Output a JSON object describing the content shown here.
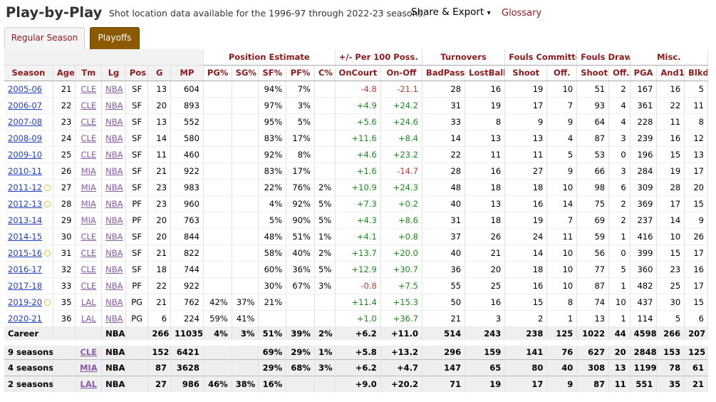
{
  "header": {
    "title": "Play-by-Play",
    "note": "Shot location data available for the 1996-97 through 2022-23 seasons.",
    "share": "Share & Export",
    "caret": "▾",
    "glossary": "Glossary"
  },
  "tabs": {
    "regular": "Regular Season",
    "playoffs": "Playoffs"
  },
  "groups": {
    "pos": "Position Estimate",
    "pm": "+/- Per 100 Poss.",
    "to": "Turnovers",
    "fc": "Fouls Committed",
    "fd": "Fouls Drawn",
    "misc": "Misc."
  },
  "columns": [
    "Season",
    "Age",
    "Tm",
    "Lg",
    "Pos",
    "G",
    "MP",
    "PG%",
    "SG%",
    "SF%",
    "PF%",
    "C%",
    "OnCourt",
    "On-Off",
    "BadPass",
    "LostBall",
    "Shoot",
    "Off.",
    "Shoot",
    "Off.",
    "PGA",
    "And1",
    "Blkd"
  ],
  "rows": [
    {
      "season": "2005-06",
      "award": false,
      "age": "21",
      "tm": "CLE",
      "lg": "NBA",
      "pos": "SF",
      "g": "13",
      "mp": "604",
      "pg": "",
      "sg": "",
      "sf": "94%",
      "pf": "7%",
      "c": "",
      "on": "-4.8",
      "onoff": "-21.1",
      "bp": "28",
      "lb": "16",
      "fcs": "19",
      "fco": "10",
      "fds": "51",
      "fdo": "2",
      "pga": "167",
      "and1": "16",
      "blkd": "5"
    },
    {
      "season": "2006-07",
      "award": false,
      "age": "22",
      "tm": "CLE",
      "lg": "NBA",
      "pos": "SF",
      "g": "20",
      "mp": "893",
      "pg": "",
      "sg": "",
      "sf": "97%",
      "pf": "3%",
      "c": "",
      "on": "+4.9",
      "onoff": "+24.2",
      "bp": "31",
      "lb": "19",
      "fcs": "17",
      "fco": "7",
      "fds": "93",
      "fdo": "4",
      "pga": "361",
      "and1": "22",
      "blkd": "11"
    },
    {
      "season": "2007-08",
      "award": false,
      "age": "23",
      "tm": "CLE",
      "lg": "NBA",
      "pos": "SF",
      "g": "13",
      "mp": "552",
      "pg": "",
      "sg": "",
      "sf": "95%",
      "pf": "5%",
      "c": "",
      "on": "+5.6",
      "onoff": "+24.6",
      "bp": "33",
      "lb": "8",
      "fcs": "9",
      "fco": "9",
      "fds": "64",
      "fdo": "4",
      "pga": "228",
      "and1": "11",
      "blkd": "8"
    },
    {
      "season": "2008-09",
      "award": false,
      "age": "24",
      "tm": "CLE",
      "lg": "NBA",
      "pos": "SF",
      "g": "14",
      "mp": "580",
      "pg": "",
      "sg": "",
      "sf": "83%",
      "pf": "17%",
      "c": "",
      "on": "+11.6",
      "onoff": "+8.4",
      "bp": "14",
      "lb": "13",
      "fcs": "13",
      "fco": "4",
      "fds": "87",
      "fdo": "3",
      "pga": "239",
      "and1": "16",
      "blkd": "12"
    },
    {
      "season": "2009-10",
      "award": false,
      "age": "25",
      "tm": "CLE",
      "lg": "NBA",
      "pos": "SF",
      "g": "11",
      "mp": "460",
      "pg": "",
      "sg": "",
      "sf": "92%",
      "pf": "8%",
      "c": "",
      "on": "+4.6",
      "onoff": "+23.2",
      "bp": "22",
      "lb": "11",
      "fcs": "11",
      "fco": "5",
      "fds": "53",
      "fdo": "0",
      "pga": "196",
      "and1": "15",
      "blkd": "13"
    },
    {
      "season": "2010-11",
      "award": false,
      "age": "26",
      "tm": "MIA",
      "lg": "NBA",
      "pos": "SF",
      "g": "21",
      "mp": "922",
      "pg": "",
      "sg": "",
      "sf": "83%",
      "pf": "17%",
      "c": "",
      "on": "+1.6",
      "onoff": "-14.7",
      "bp": "28",
      "lb": "16",
      "fcs": "27",
      "fco": "9",
      "fds": "66",
      "fdo": "3",
      "pga": "284",
      "and1": "19",
      "blkd": "17"
    },
    {
      "season": "2011-12",
      "award": true,
      "age": "27",
      "tm": "MIA",
      "lg": "NBA",
      "pos": "SF",
      "g": "23",
      "mp": "983",
      "pg": "",
      "sg": "",
      "sf": "22%",
      "pf": "76%",
      "c": "2%",
      "on": "+10.9",
      "onoff": "+24.3",
      "bp": "48",
      "lb": "18",
      "fcs": "18",
      "fco": "10",
      "fds": "98",
      "fdo": "6",
      "pga": "309",
      "and1": "28",
      "blkd": "20"
    },
    {
      "season": "2012-13",
      "award": true,
      "age": "28",
      "tm": "MIA",
      "lg": "NBA",
      "pos": "PF",
      "g": "23",
      "mp": "960",
      "pg": "",
      "sg": "",
      "sf": "4%",
      "pf": "92%",
      "c": "5%",
      "on": "+7.3",
      "onoff": "+0.2",
      "bp": "40",
      "lb": "13",
      "fcs": "16",
      "fco": "14",
      "fds": "75",
      "fdo": "2",
      "pga": "369",
      "and1": "17",
      "blkd": "15"
    },
    {
      "season": "2013-14",
      "award": false,
      "age": "29",
      "tm": "MIA",
      "lg": "NBA",
      "pos": "PF",
      "g": "20",
      "mp": "763",
      "pg": "",
      "sg": "",
      "sf": "5%",
      "pf": "90%",
      "c": "5%",
      "on": "+4.3",
      "onoff": "+8.6",
      "bp": "31",
      "lb": "18",
      "fcs": "19",
      "fco": "7",
      "fds": "69",
      "fdo": "2",
      "pga": "237",
      "and1": "14",
      "blkd": "9"
    },
    {
      "season": "2014-15",
      "award": false,
      "age": "30",
      "tm": "CLE",
      "lg": "NBA",
      "pos": "SF",
      "g": "20",
      "mp": "844",
      "pg": "",
      "sg": "",
      "sf": "48%",
      "pf": "51%",
      "c": "1%",
      "on": "+4.1",
      "onoff": "+0.8",
      "bp": "37",
      "lb": "26",
      "fcs": "24",
      "fco": "11",
      "fds": "59",
      "fdo": "1",
      "pga": "416",
      "and1": "10",
      "blkd": "26"
    },
    {
      "season": "2015-16",
      "award": true,
      "age": "31",
      "tm": "CLE",
      "lg": "NBA",
      "pos": "SF",
      "g": "21",
      "mp": "822",
      "pg": "",
      "sg": "",
      "sf": "58%",
      "pf": "40%",
      "c": "2%",
      "on": "+13.7",
      "onoff": "+20.0",
      "bp": "40",
      "lb": "21",
      "fcs": "14",
      "fco": "10",
      "fds": "56",
      "fdo": "0",
      "pga": "399",
      "and1": "15",
      "blkd": "17"
    },
    {
      "season": "2016-17",
      "award": false,
      "age": "32",
      "tm": "CLE",
      "lg": "NBA",
      "pos": "SF",
      "g": "18",
      "mp": "744",
      "pg": "",
      "sg": "",
      "sf": "60%",
      "pf": "36%",
      "c": "5%",
      "on": "+12.9",
      "onoff": "+30.7",
      "bp": "36",
      "lb": "20",
      "fcs": "18",
      "fco": "10",
      "fds": "77",
      "fdo": "5",
      "pga": "360",
      "and1": "23",
      "blkd": "16"
    },
    {
      "season": "2017-18",
      "award": false,
      "age": "33",
      "tm": "CLE",
      "lg": "NBA",
      "pos": "PF",
      "g": "22",
      "mp": "922",
      "pg": "",
      "sg": "",
      "sf": "30%",
      "pf": "67%",
      "c": "3%",
      "on": "-0.8",
      "onoff": "+7.5",
      "bp": "55",
      "lb": "25",
      "fcs": "16",
      "fco": "10",
      "fds": "87",
      "fdo": "1",
      "pga": "482",
      "and1": "25",
      "blkd": "17"
    },
    {
      "season": "2019-20",
      "award": true,
      "age": "35",
      "tm": "LAL",
      "lg": "NBA",
      "pos": "PG",
      "g": "21",
      "mp": "762",
      "pg": "42%",
      "sg": "37%",
      "sf": "21%",
      "pf": "",
      "c": "",
      "on": "+11.4",
      "onoff": "+15.3",
      "bp": "50",
      "lb": "16",
      "fcs": "15",
      "fco": "8",
      "fds": "74",
      "fdo": "10",
      "pga": "437",
      "and1": "30",
      "blkd": "15"
    },
    {
      "season": "2020-21",
      "award": false,
      "age": "36",
      "tm": "LAL",
      "lg": "NBA",
      "pos": "PG",
      "g": "6",
      "mp": "224",
      "pg": "59%",
      "sg": "41%",
      "sf": "",
      "pf": "",
      "c": "",
      "on": "+1.0",
      "onoff": "+36.7",
      "bp": "21",
      "lb": "3",
      "fcs": "2",
      "fco": "1",
      "fds": "13",
      "fdo": "1",
      "pga": "114",
      "and1": "5",
      "blkd": "6"
    }
  ],
  "totals": [
    {
      "season": "Career",
      "tm": "",
      "lg": "NBA",
      "g": "266",
      "mp": "11035",
      "pg": "4%",
      "sg": "3%",
      "sf": "51%",
      "pf": "39%",
      "c": "2%",
      "on": "+6.2",
      "onoff": "+11.0",
      "bp": "514",
      "lb": "243",
      "fcs": "238",
      "fco": "125",
      "fds": "1022",
      "fdo": "44",
      "pga": "4598",
      "and1": "266",
      "blkd": "207"
    },
    {
      "season": "9 seasons",
      "tm": "CLE",
      "lg": "NBA",
      "g": "152",
      "mp": "6421",
      "pg": "",
      "sg": "",
      "sf": "69%",
      "pf": "29%",
      "c": "1%",
      "on": "+5.8",
      "onoff": "+13.2",
      "bp": "296",
      "lb": "159",
      "fcs": "141",
      "fco": "76",
      "fds": "627",
      "fdo": "20",
      "pga": "2848",
      "and1": "153",
      "blkd": "125"
    },
    {
      "season": "4 seasons",
      "tm": "MIA",
      "lg": "NBA",
      "g": "87",
      "mp": "3628",
      "pg": "",
      "sg": "",
      "sf": "29%",
      "pf": "68%",
      "c": "3%",
      "on": "+6.2",
      "onoff": "+4.7",
      "bp": "147",
      "lb": "65",
      "fcs": "80",
      "fco": "40",
      "fds": "308",
      "fdo": "13",
      "pga": "1199",
      "and1": "78",
      "blkd": "61"
    },
    {
      "season": "2 seasons",
      "tm": "LAL",
      "lg": "NBA",
      "g": "27",
      "mp": "986",
      "pg": "46%",
      "sg": "38%",
      "sf": "16%",
      "pf": "",
      "c": "",
      "on": "+9.0",
      "onoff": "+20.2",
      "bp": "71",
      "lb": "19",
      "fcs": "17",
      "fco": "9",
      "fds": "87",
      "fdo": "11",
      "pga": "551",
      "and1": "35",
      "blkd": "21"
    }
  ]
}
